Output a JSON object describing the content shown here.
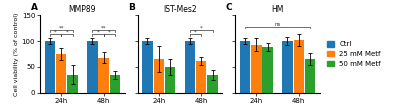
{
  "chart_data": [
    {
      "type": "bar",
      "title": "MMP89",
      "panel_label": "A",
      "ylabel": "Cell viability (% of control)",
      "categories": [
        "24h",
        "48h"
      ],
      "series": [
        {
          "name": "Ctrl",
          "values": [
            100,
            100
          ],
          "errors": [
            5,
            5
          ]
        },
        {
          "name": "25 mM Metf",
          "values": [
            75,
            68
          ],
          "errors": [
            12,
            10
          ]
        },
        {
          "name": "50 mM Metf",
          "values": [
            35,
            35
          ],
          "errors": [
            18,
            8
          ]
        }
      ],
      "ylim": [
        0,
        150
      ],
      "yticks": [
        0,
        50,
        100,
        150
      ],
      "annotations": [
        {
          "text": "**",
          "y": 122,
          "from": [
            "24h",
            "Ctrl"
          ],
          "to": [
            "24h",
            "50 mM Metf"
          ]
        },
        {
          "text": "*",
          "y": 113,
          "from": [
            "24h",
            "Ctrl"
          ],
          "to": [
            "24h",
            "25 mM Metf"
          ]
        },
        {
          "text": "*",
          "y": 113,
          "from": [
            "24h",
            "25 mM Metf"
          ],
          "to": [
            "24h",
            "50 mM Metf"
          ]
        },
        {
          "text": "**",
          "y": 122,
          "from": [
            "48h",
            "Ctrl"
          ],
          "to": [
            "48h",
            "50 mM Metf"
          ]
        },
        {
          "text": "*",
          "y": 113,
          "from": [
            "48h",
            "Ctrl"
          ],
          "to": [
            "48h",
            "25 mM Metf"
          ]
        },
        {
          "text": "*",
          "y": 113,
          "from": [
            "48h",
            "25 mM Metf"
          ],
          "to": [
            "48h",
            "50 mM Metf"
          ]
        }
      ]
    },
    {
      "type": "bar",
      "title": "IST-Mes2",
      "panel_label": "B",
      "categories": [
        "24h",
        "48h"
      ],
      "series": [
        {
          "name": "Ctrl",
          "values": [
            100,
            100
          ],
          "errors": [
            5,
            5
          ]
        },
        {
          "name": "25 mM Metf",
          "values": [
            65,
            62
          ],
          "errors": [
            25,
            8
          ]
        },
        {
          "name": "50 mM Metf",
          "values": [
            50,
            35
          ],
          "errors": [
            15,
            10
          ]
        }
      ],
      "ylim": [
        0,
        150
      ],
      "yticks": [
        0,
        50,
        100,
        150
      ],
      "tick_labels": "x",
      "annotations": [
        {
          "text": "*",
          "y": 122,
          "from": [
            "48h",
            "Ctrl"
          ],
          "to": [
            "48h",
            "50 mM Metf"
          ]
        },
        {
          "text": "*",
          "y": 113,
          "from": [
            "48h",
            "Ctrl"
          ],
          "to": [
            "48h",
            "25 mM Metf"
          ]
        }
      ]
    },
    {
      "type": "bar",
      "title": "HM",
      "panel_label": "C",
      "categories": [
        "24h",
        "48h"
      ],
      "series": [
        {
          "name": "Ctrl",
          "values": [
            100,
            100
          ],
          "errors": [
            5,
            8
          ]
        },
        {
          "name": "25 mM Metf",
          "values": [
            93,
            102
          ],
          "errors": [
            12,
            12
          ]
        },
        {
          "name": "50 mM Metf",
          "values": [
            88,
            65
          ],
          "errors": [
            8,
            12
          ]
        }
      ],
      "ylim": [
        0,
        150
      ],
      "yticks": [
        0,
        50,
        100,
        150
      ],
      "tick_labels": "x",
      "legend": "right",
      "annotations": [
        {
          "text": "ns",
          "y": 128,
          "from": [
            "24h",
            "Ctrl"
          ],
          "to": [
            "48h",
            "50 mM Metf"
          ]
        }
      ]
    }
  ]
}
